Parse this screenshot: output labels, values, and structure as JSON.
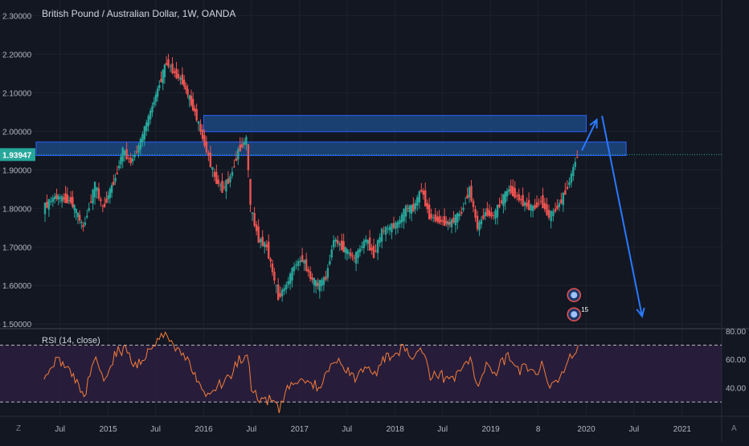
{
  "chart_data": [
    {
      "type": "candlestick",
      "title": "British Pound / Australian Dollar, 1W, OANDA",
      "y_ticks": [
        "2.30000",
        "2.20000",
        "2.10000",
        "2.00000",
        "1.90000",
        "1.80000",
        "1.70000",
        "1.60000",
        "1.50000"
      ],
      "y_tick_values": [
        2.3,
        2.2,
        2.1,
        2.0,
        1.9,
        1.8,
        1.7,
        1.6,
        1.5
      ],
      "ylim": [
        1.49,
        2.33
      ],
      "last_price_label": "1.93947",
      "last_price": 1.93947,
      "x_ticks": [
        "Jul",
        "2015",
        "Jul",
        "2016",
        "Jul",
        "2017",
        "Jul",
        "2018",
        "Jul",
        "2019",
        "8",
        "2020",
        "Jul",
        "2021"
      ],
      "x_tick_dates": [
        "2014-07",
        "2015-01",
        "2015-07",
        "2016-01",
        "2016-07",
        "2017-01",
        "2017-07",
        "2018-01",
        "2018-07",
        "2019-01",
        "2019-07",
        "2020-01",
        "2020-07",
        "2021-01"
      ],
      "x_range": [
        "2014-04",
        "2021-06"
      ],
      "close_path": [
        [
          "2014-05-01",
          1.8
        ],
        [
          "2014-06-15",
          1.83
        ],
        [
          "2014-08-15",
          1.82
        ],
        [
          "2014-10-01",
          1.75
        ],
        [
          "2014-11-15",
          1.86
        ],
        [
          "2014-12-15",
          1.8
        ],
        [
          "2015-02-01",
          1.88
        ],
        [
          "2015-03-01",
          1.95
        ],
        [
          "2015-04-01",
          1.92
        ],
        [
          "2015-05-01",
          1.96
        ],
        [
          "2015-06-15",
          2.05
        ],
        [
          "2015-08-15",
          2.18
        ],
        [
          "2015-09-15",
          2.15
        ],
        [
          "2015-10-15",
          2.13
        ],
        [
          "2015-12-01",
          2.05
        ],
        [
          "2016-01-15",
          1.95
        ],
        [
          "2016-02-15",
          1.88
        ],
        [
          "2016-03-15",
          1.85
        ],
        [
          "2016-04-15",
          1.88
        ],
        [
          "2016-05-15",
          1.95
        ],
        [
          "2016-06-15",
          1.98
        ],
        [
          "2016-07-01",
          1.8
        ],
        [
          "2016-08-01",
          1.72
        ],
        [
          "2016-09-01",
          1.7
        ],
        [
          "2016-10-15",
          1.57
        ],
        [
          "2016-11-15",
          1.6
        ],
        [
          "2016-12-15",
          1.65
        ],
        [
          "2017-01-15",
          1.67
        ],
        [
          "2017-02-15",
          1.62
        ],
        [
          "2017-03-15",
          1.6
        ],
        [
          "2017-04-15",
          1.62
        ],
        [
          "2017-05-15",
          1.72
        ],
        [
          "2017-06-15",
          1.7
        ],
        [
          "2017-08-01",
          1.67
        ],
        [
          "2017-09-15",
          1.72
        ],
        [
          "2017-10-15",
          1.68
        ],
        [
          "2017-11-15",
          1.74
        ],
        [
          "2017-12-15",
          1.75
        ],
        [
          "2018-01-15",
          1.76
        ],
        [
          "2018-02-15",
          1.8
        ],
        [
          "2018-03-15",
          1.8
        ],
        [
          "2018-04-15",
          1.85
        ],
        [
          "2018-05-15",
          1.78
        ],
        [
          "2018-06-15",
          1.77
        ],
        [
          "2018-08-01",
          1.76
        ],
        [
          "2018-09-15",
          1.79
        ],
        [
          "2018-10-15",
          1.85
        ],
        [
          "2018-11-15",
          1.75
        ],
        [
          "2018-12-15",
          1.79
        ],
        [
          "2019-01-15",
          1.78
        ],
        [
          "2019-02-15",
          1.82
        ],
        [
          "2019-03-15",
          1.85
        ],
        [
          "2019-04-15",
          1.83
        ],
        [
          "2019-05-15",
          1.81
        ],
        [
          "2019-06-15",
          1.8
        ],
        [
          "2019-07-15",
          1.82
        ],
        [
          "2019-08-15",
          1.78
        ],
        [
          "2019-09-01",
          1.79
        ],
        [
          "2019-10-01",
          1.82
        ],
        [
          "2019-11-01",
          1.87
        ],
        [
          "2019-12-01",
          1.93947
        ]
      ],
      "resistance_zones": [
        {
          "from": "2016-01-01",
          "to": "2020-01-01",
          "low": 1.999,
          "high": 2.041
        },
        {
          "from": "2014-04-01",
          "to": "2020-06-01",
          "low": 1.937,
          "high": 1.972
        }
      ],
      "projection_arrows": [
        [
          [
            "2019-12-15",
            1.95
          ],
          [
            "2020-02-10",
            2.03
          ]
        ],
        [
          [
            "2020-03-01",
            2.04
          ],
          [
            "2020-08-01",
            1.52
          ]
        ]
      ],
      "event_markers": [
        {
          "date": "2019-11-15",
          "price": 1.575,
          "label": ""
        },
        {
          "date": "2019-11-15",
          "price": 1.525,
          "label": "15"
        }
      ]
    },
    {
      "type": "line",
      "title": "RSI (14, close)",
      "y_ticks": [
        "80.00",
        "60.00",
        "40.00"
      ],
      "y_tick_values": [
        80,
        60,
        40
      ],
      "ylim": [
        20,
        81
      ],
      "band": [
        30,
        70
      ],
      "series": [
        {
          "values": [
            [
              "2014-05-01",
              50
            ],
            [
              "2014-06-15",
              60
            ],
            [
              "2014-08-01",
              54
            ],
            [
              "2014-10-01",
              35
            ],
            [
              "2014-11-15",
              62
            ],
            [
              "2014-12-15",
              46
            ],
            [
              "2015-02-01",
              65
            ],
            [
              "2015-03-15",
              68
            ],
            [
              "2015-04-15",
              55
            ],
            [
              "2015-06-01",
              66
            ],
            [
              "2015-07-15",
              75
            ],
            [
              "2015-08-15",
              80
            ],
            [
              "2015-09-15",
              65
            ],
            [
              "2015-10-15",
              63
            ],
            [
              "2015-11-15",
              55
            ],
            [
              "2016-01-01",
              38
            ],
            [
              "2016-02-01",
              35
            ],
            [
              "2016-03-01",
              42
            ],
            [
              "2016-04-15",
              50
            ],
            [
              "2016-05-15",
              60
            ],
            [
              "2016-06-15",
              63
            ],
            [
              "2016-07-01",
              40
            ],
            [
              "2016-08-01",
              29
            ],
            [
              "2016-09-15",
              32
            ],
            [
              "2016-10-15",
              25
            ],
            [
              "2016-11-15",
              38
            ],
            [
              "2016-12-15",
              45
            ],
            [
              "2017-01-15",
              48
            ],
            [
              "2017-02-15",
              43
            ],
            [
              "2017-03-15",
              40
            ],
            [
              "2017-04-15",
              48
            ],
            [
              "2017-05-15",
              60
            ],
            [
              "2017-06-15",
              55
            ],
            [
              "2017-08-01",
              45
            ],
            [
              "2017-09-15",
              55
            ],
            [
              "2017-10-15",
              48
            ],
            [
              "2017-11-15",
              60
            ],
            [
              "2018-01-01",
              63
            ],
            [
              "2018-02-01",
              68
            ],
            [
              "2018-03-01",
              60
            ],
            [
              "2018-04-15",
              66
            ],
            [
              "2018-05-15",
              48
            ],
            [
              "2018-06-15",
              50
            ],
            [
              "2018-08-01",
              44
            ],
            [
              "2018-09-15",
              55
            ],
            [
              "2018-10-15",
              62
            ],
            [
              "2018-11-15",
              40
            ],
            [
              "2018-12-15",
              55
            ],
            [
              "2019-01-15",
              50
            ],
            [
              "2019-02-15",
              58
            ],
            [
              "2019-03-15",
              62
            ],
            [
              "2019-04-15",
              52
            ],
            [
              "2019-05-15",
              55
            ],
            [
              "2019-06-15",
              50
            ],
            [
              "2019-07-15",
              55
            ],
            [
              "2019-08-15",
              40
            ],
            [
              "2019-09-15",
              45
            ],
            [
              "2019-10-15",
              57
            ],
            [
              "2019-11-15",
              65
            ],
            [
              "2019-12-01",
              70
            ]
          ]
        }
      ]
    }
  ],
  "colors": {
    "background": "#131722",
    "grid": "#1e222d",
    "axis_text": "#b2b5be",
    "up": "#26a69a",
    "down": "#ef5350",
    "zone_fill": "#1e4d8c",
    "zone_border": "#2962ff",
    "arrow": "#2979ff",
    "rsi_line": "#f57c3a",
    "rsi_band": "#2a1e3d",
    "price_label_bg": "#26a69a"
  },
  "ui": {
    "left_corner": "Z",
    "right_corner": "A"
  }
}
